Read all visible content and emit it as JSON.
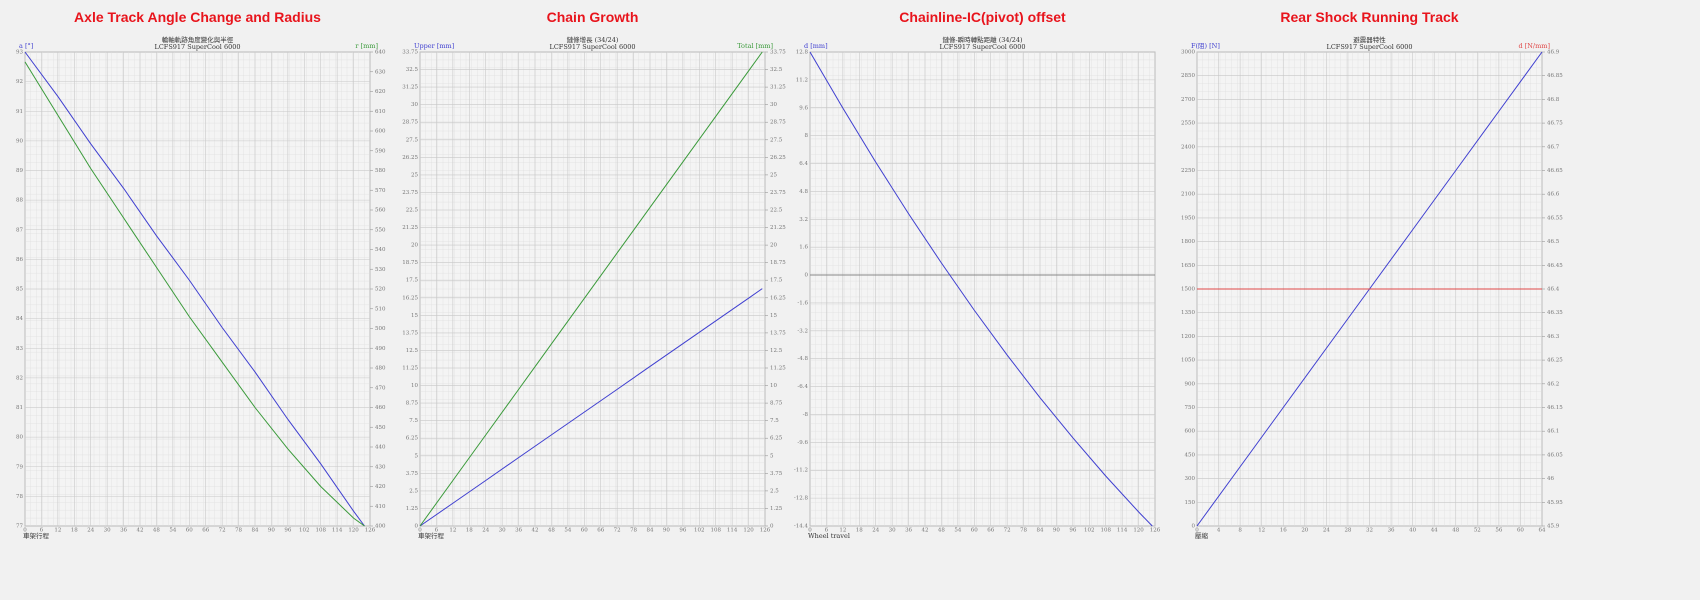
{
  "chart_data": [
    {
      "type": "line",
      "title": "Axle Track Angle Change and Radius",
      "subtitle": [
        "輪軸軌跡角度變化與半徑",
        "LCFS917 SuperCool 6000"
      ],
      "y_label": "a [°]",
      "y2_label": "r [mm]",
      "x_label": "車架行程",
      "x": [
        0,
        12,
        24,
        36,
        48,
        60,
        72,
        84,
        96,
        108,
        120,
        124
      ],
      "series": [
        {
          "name": "a",
          "color": "#3f3fd0",
          "values": [
            93,
            91.5,
            89.9,
            88.4,
            86.8,
            85.3,
            83.7,
            82.2,
            80.6,
            79.1,
            77.5,
            77
          ]
        },
        {
          "name": "r",
          "color": "#3a9a3a",
          "axis": "y2",
          "values": [
            635,
            608,
            581,
            556,
            531,
            506,
            483,
            460,
            439,
            420,
            404,
            400
          ]
        }
      ],
      "xlim": [
        0,
        126
      ],
      "xticks": [
        0,
        6,
        12,
        18,
        24,
        30,
        36,
        42,
        48,
        54,
        60,
        66,
        72,
        78,
        84,
        90,
        96,
        102,
        108,
        114,
        120,
        126
      ],
      "ylim": [
        77,
        93
      ],
      "yticks": [
        77,
        78,
        79,
        80,
        81,
        82,
        83,
        84,
        85,
        86,
        87,
        88,
        89,
        90,
        91,
        92,
        93
      ],
      "y2lim": [
        400,
        640
      ],
      "y2ticks": [
        400,
        410,
        420,
        430,
        440,
        450,
        460,
        470,
        480,
        490,
        500,
        510,
        520,
        530,
        540,
        550,
        560,
        570,
        580,
        590,
        600,
        610,
        620,
        630,
        640
      ]
    },
    {
      "type": "line",
      "title": "Chain Growth",
      "subtitle": [
        "鏈條增長 (34/24)",
        "LCFS917 SuperCool 6000"
      ],
      "y_label": "Upper [mm]",
      "y2_label": "Total [mm]",
      "x_label": "車架行程",
      "x": [
        0,
        12,
        24,
        36,
        48,
        60,
        72,
        84,
        96,
        108,
        120,
        125
      ],
      "series": [
        {
          "name": "Upper",
          "color": "#3f3fd0",
          "values": [
            0,
            1.62,
            3.24,
            4.87,
            6.49,
            8.11,
            9.73,
            11.36,
            12.98,
            14.6,
            16.22,
            16.9
          ]
        },
        {
          "name": "Total",
          "color": "#3a9a3a",
          "axis": "y2",
          "values": [
            0,
            3.24,
            6.48,
            9.72,
            12.96,
            16.2,
            19.44,
            22.68,
            25.92,
            29.16,
            32.4,
            33.75
          ]
        }
      ],
      "xlim": [
        0,
        126
      ],
      "xticks": [
        0,
        6,
        12,
        18,
        24,
        30,
        36,
        42,
        48,
        54,
        60,
        66,
        72,
        78,
        84,
        90,
        96,
        102,
        108,
        114,
        120,
        126
      ],
      "ylim": [
        0,
        33.75
      ],
      "yticks": [
        0,
        1.25,
        2.5,
        3.75,
        5,
        6.25,
        7.5,
        8.75,
        10,
        11.25,
        12.5,
        13.75,
        15,
        16.25,
        17.5,
        18.75,
        20,
        21.25,
        22.5,
        23.75,
        25,
        26.25,
        27.5,
        28.75,
        30,
        31.25,
        32.5,
        33.75
      ],
      "y2lim": [
        0,
        33.75
      ],
      "y2ticks": [
        0,
        1.25,
        2.5,
        3.75,
        5,
        6.25,
        7.5,
        8.75,
        10,
        11.25,
        12.5,
        13.75,
        15,
        16.25,
        17.5,
        18.75,
        20,
        21.25,
        22.5,
        23.75,
        25,
        26.25,
        27.5,
        28.75,
        30,
        31.25,
        32.5,
        33.75
      ]
    },
    {
      "type": "line",
      "title": "Chainline-IC(pivot) offset",
      "subtitle": [
        "鏈條-瞬時轉點距離 (34/24)",
        "LCFS917 SuperCool 6000"
      ],
      "y_label": "d [mm]",
      "x_label": "Wheel travel",
      "x": [
        0,
        12,
        24,
        36,
        48,
        60,
        72,
        84,
        96,
        108,
        120,
        125
      ],
      "series": [
        {
          "name": "d",
          "color": "#3f3fd0",
          "values": [
            12.8,
            9.58,
            6.48,
            3.52,
            0.69,
            -2.02,
            -4.59,
            -7.04,
            -9.34,
            -11.53,
            -13.59,
            -14.4
          ]
        }
      ],
      "reference_line": 0,
      "xlim": [
        0,
        126
      ],
      "xticks": [
        0,
        6,
        12,
        18,
        24,
        30,
        36,
        42,
        48,
        54,
        60,
        66,
        72,
        78,
        84,
        90,
        96,
        102,
        108,
        114,
        120,
        126
      ],
      "ylim": [
        -14.4,
        12.8
      ],
      "yticks": [
        -14.4,
        -12.8,
        -11.2,
        -9.6,
        -8,
        -6.4,
        -4.8,
        -3.2,
        -1.6,
        0,
        1.6,
        3.2,
        4.8,
        6.4,
        8,
        9.6,
        11.2,
        12.8
      ]
    },
    {
      "type": "line",
      "title": "Rear Shock Running Track",
      "subtitle": [
        "避震器特性",
        "LCFS917 SuperCool 6000"
      ],
      "y_label": "F(阻) [N]",
      "y2_label": "d [N/mm]",
      "x_label": "壓縮",
      "x": [
        0,
        8,
        16,
        24,
        32,
        40,
        48,
        56,
        64
      ],
      "series": [
        {
          "name": "F",
          "color": "#3f3fd0",
          "values": [
            0,
            375,
            750,
            1125,
            1500,
            1875,
            2250,
            2625,
            3000
          ]
        },
        {
          "name": "d",
          "color": "#e04848",
          "axis": "y2",
          "values": [
            46.4,
            46.4,
            46.4,
            46.4,
            46.4,
            46.4,
            46.4,
            46.4,
            46.4
          ]
        }
      ],
      "xlim": [
        0,
        64
      ],
      "xticks": [
        0,
        4,
        8,
        12,
        16,
        20,
        24,
        28,
        32,
        36,
        40,
        44,
        48,
        52,
        56,
        60,
        64
      ],
      "ylim": [
        0,
        3000
      ],
      "yticks": [
        0,
        150,
        300,
        450,
        600,
        750,
        900,
        1050,
        1200,
        1350,
        1500,
        1650,
        1800,
        1950,
        2100,
        2250,
        2400,
        2550,
        2700,
        2850,
        3000
      ],
      "y2lim": [
        45.9,
        46.9
      ],
      "y2ticks": [
        45.9,
        45.95,
        46,
        46.05,
        46.1,
        46.15,
        46.2,
        46.25,
        46.3,
        46.35,
        46.4,
        46.45,
        46.5,
        46.55,
        46.6,
        46.65,
        46.7,
        46.75,
        46.8,
        46.85,
        46.9
      ]
    }
  ]
}
